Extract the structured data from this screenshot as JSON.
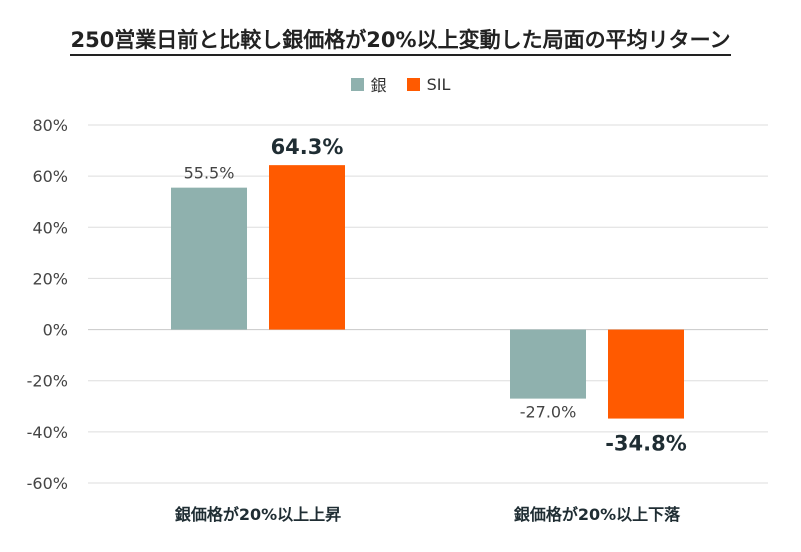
{
  "chart_data": {
    "type": "bar",
    "title": "250営業日前と比較し銀価格が20%以上変動した局面の平均リターン",
    "categories": [
      "銀価格が20%以上上昇",
      "銀価格が20%以上下落"
    ],
    "series": [
      {
        "name": "銀",
        "values": [
          55.5,
          -27.0
        ],
        "labels": [
          "55.5%",
          "-27.0%"
        ],
        "color": "#8fb1ae"
      },
      {
        "name": "SIL",
        "values": [
          64.3,
          -34.8
        ],
        "labels": [
          "64.3%",
          "-34.8%"
        ],
        "color": "#ff5a00"
      }
    ],
    "ylim": [
      -60,
      80
    ],
    "yticks": [
      80,
      60,
      40,
      20,
      0,
      -20,
      -40,
      -60
    ],
    "ytick_labels": [
      "80%",
      "60%",
      "40%",
      "20%",
      "0%",
      "-20%",
      "-40%",
      "-60%"
    ],
    "grid": true,
    "legend_position": "top-center"
  }
}
